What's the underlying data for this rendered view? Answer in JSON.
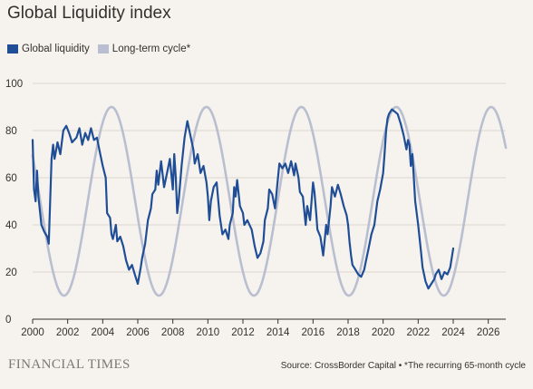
{
  "title": "Global Liquidity index",
  "footer": {
    "publisher": "FINANCIAL TIMES",
    "source": "Source: CrossBorder Capital • *The recurring 65-month cycle"
  },
  "colors": {
    "global_liquidity": "#1f4e96",
    "cycle": "#b9bfd0",
    "grid": "#ddd6cf",
    "axis": "#33302e"
  },
  "chart_data": {
    "type": "line",
    "title": "Global Liquidity index",
    "xlabel": "",
    "ylabel": "",
    "xlim": [
      2000,
      2027
    ],
    "ylim": [
      0,
      100
    ],
    "yticks": [
      0,
      20,
      40,
      60,
      80,
      100
    ],
    "xticks": [
      2000,
      2002,
      2004,
      2006,
      2008,
      2010,
      2012,
      2014,
      2016,
      2018,
      2020,
      2022,
      2024,
      2026
    ],
    "grid": "horizontal",
    "legend_position": "top-left",
    "series": [
      {
        "name": "Global liquidity",
        "color": "#1f4e96",
        "points": [
          [
            2000.0,
            76
          ],
          [
            2000.08,
            55
          ],
          [
            2000.17,
            50
          ],
          [
            2000.25,
            63
          ],
          [
            2000.33,
            52
          ],
          [
            2000.5,
            40
          ],
          [
            2000.67,
            37
          ],
          [
            2000.83,
            35
          ],
          [
            2000.92,
            32
          ],
          [
            2001.0,
            50
          ],
          [
            2001.08,
            68
          ],
          [
            2001.17,
            74
          ],
          [
            2001.25,
            68
          ],
          [
            2001.42,
            75
          ],
          [
            2001.58,
            70
          ],
          [
            2001.75,
            80
          ],
          [
            2001.92,
            82
          ],
          [
            2002.08,
            79
          ],
          [
            2002.25,
            75
          ],
          [
            2002.5,
            77
          ],
          [
            2002.67,
            81
          ],
          [
            2002.83,
            74
          ],
          [
            2003.0,
            79
          ],
          [
            2003.17,
            76
          ],
          [
            2003.33,
            81
          ],
          [
            2003.5,
            76
          ],
          [
            2003.67,
            77
          ],
          [
            2003.83,
            71
          ],
          [
            2004.0,
            65
          ],
          [
            2004.17,
            60
          ],
          [
            2004.25,
            45
          ],
          [
            2004.42,
            43
          ],
          [
            2004.5,
            36
          ],
          [
            2004.58,
            34
          ],
          [
            2004.75,
            40
          ],
          [
            2004.83,
            33
          ],
          [
            2005.0,
            35
          ],
          [
            2005.17,
            31
          ],
          [
            2005.33,
            25
          ],
          [
            2005.5,
            21
          ],
          [
            2005.67,
            23
          ],
          [
            2005.83,
            19
          ],
          [
            2006.0,
            15
          ],
          [
            2006.17,
            22
          ],
          [
            2006.25,
            26
          ],
          [
            2006.42,
            32
          ],
          [
            2006.58,
            42
          ],
          [
            2006.75,
            47
          ],
          [
            2006.83,
            53
          ],
          [
            2007.0,
            55
          ],
          [
            2007.08,
            63
          ],
          [
            2007.17,
            57
          ],
          [
            2007.33,
            67
          ],
          [
            2007.5,
            56
          ],
          [
            2007.67,
            62
          ],
          [
            2007.83,
            68
          ],
          [
            2008.0,
            55
          ],
          [
            2008.08,
            70
          ],
          [
            2008.17,
            60
          ],
          [
            2008.25,
            45
          ],
          [
            2008.33,
            50
          ],
          [
            2008.5,
            65
          ],
          [
            2008.67,
            77
          ],
          [
            2008.83,
            84
          ],
          [
            2009.0,
            78
          ],
          [
            2009.17,
            72
          ],
          [
            2009.25,
            66
          ],
          [
            2009.42,
            70
          ],
          [
            2009.58,
            62
          ],
          [
            2009.75,
            65
          ],
          [
            2009.92,
            58
          ],
          [
            2010.0,
            52
          ],
          [
            2010.08,
            42
          ],
          [
            2010.17,
            50
          ],
          [
            2010.33,
            56
          ],
          [
            2010.5,
            58
          ],
          [
            2010.67,
            44
          ],
          [
            2010.83,
            36
          ],
          [
            2011.0,
            38
          ],
          [
            2011.17,
            34
          ],
          [
            2011.25,
            40
          ],
          [
            2011.42,
            45
          ],
          [
            2011.5,
            56
          ],
          [
            2011.58,
            52
          ],
          [
            2011.67,
            59
          ],
          [
            2011.83,
            48
          ],
          [
            2012.0,
            45
          ],
          [
            2012.08,
            40
          ],
          [
            2012.25,
            42
          ],
          [
            2012.5,
            38
          ],
          [
            2012.67,
            31
          ],
          [
            2012.83,
            26
          ],
          [
            2013.0,
            28
          ],
          [
            2013.17,
            33
          ],
          [
            2013.25,
            42
          ],
          [
            2013.42,
            47
          ],
          [
            2013.5,
            55
          ],
          [
            2013.67,
            53
          ],
          [
            2013.83,
            47
          ],
          [
            2014.0,
            60
          ],
          [
            2014.08,
            66
          ],
          [
            2014.25,
            64
          ],
          [
            2014.42,
            66
          ],
          [
            2014.58,
            62
          ],
          [
            2014.75,
            67
          ],
          [
            2014.92,
            61
          ],
          [
            2015.0,
            66
          ],
          [
            2015.17,
            60
          ],
          [
            2015.25,
            54
          ],
          [
            2015.42,
            52
          ],
          [
            2015.58,
            40
          ],
          [
            2015.67,
            48
          ],
          [
            2015.83,
            42
          ],
          [
            2016.0,
            58
          ],
          [
            2016.08,
            54
          ],
          [
            2016.17,
            46
          ],
          [
            2016.25,
            38
          ],
          [
            2016.42,
            35
          ],
          [
            2016.5,
            31
          ],
          [
            2016.58,
            27
          ],
          [
            2016.75,
            40
          ],
          [
            2016.83,
            36
          ],
          [
            2017.0,
            48
          ],
          [
            2017.08,
            56
          ],
          [
            2017.25,
            52
          ],
          [
            2017.42,
            57
          ],
          [
            2017.58,
            53
          ],
          [
            2017.75,
            48
          ],
          [
            2017.92,
            44
          ],
          [
            2018.0,
            40
          ],
          [
            2018.08,
            33
          ],
          [
            2018.17,
            27
          ],
          [
            2018.25,
            23
          ],
          [
            2018.42,
            21
          ],
          [
            2018.58,
            19
          ],
          [
            2018.75,
            18
          ],
          [
            2018.92,
            21
          ],
          [
            2019.0,
            24
          ],
          [
            2019.17,
            30
          ],
          [
            2019.33,
            36
          ],
          [
            2019.5,
            40
          ],
          [
            2019.67,
            50
          ],
          [
            2019.83,
            55
          ],
          [
            2020.0,
            62
          ],
          [
            2020.08,
            70
          ],
          [
            2020.17,
            80
          ],
          [
            2020.25,
            85
          ],
          [
            2020.33,
            87
          ],
          [
            2020.5,
            89
          ],
          [
            2020.67,
            88
          ],
          [
            2020.83,
            87
          ],
          [
            2021.0,
            83
          ],
          [
            2021.17,
            78
          ],
          [
            2021.33,
            72
          ],
          [
            2021.42,
            76
          ],
          [
            2021.5,
            74
          ],
          [
            2021.58,
            65
          ],
          [
            2021.67,
            70
          ],
          [
            2021.75,
            60
          ],
          [
            2021.83,
            50
          ],
          [
            2022.0,
            40
          ],
          [
            2022.17,
            28
          ],
          [
            2022.25,
            22
          ],
          [
            2022.42,
            16
          ],
          [
            2022.58,
            13
          ],
          [
            2022.75,
            15
          ],
          [
            2022.92,
            17
          ],
          [
            2023.0,
            19
          ],
          [
            2023.17,
            21
          ],
          [
            2023.33,
            17
          ],
          [
            2023.5,
            20
          ],
          [
            2023.67,
            19
          ],
          [
            2023.83,
            22
          ],
          [
            2024.0,
            30
          ]
        ]
      },
      {
        "name": "Long-term cycle*",
        "color": "#b9bfd0",
        "period_months": 65,
        "amplitude": 40,
        "midline": 50,
        "first_peak": 2004.5,
        "range": [
          2000,
          2027
        ]
      }
    ]
  },
  "legend": [
    {
      "label": "Global liquidity",
      "color": "#1f4e96"
    },
    {
      "label": "Long-term cycle*",
      "color": "#b9bfd0"
    }
  ]
}
